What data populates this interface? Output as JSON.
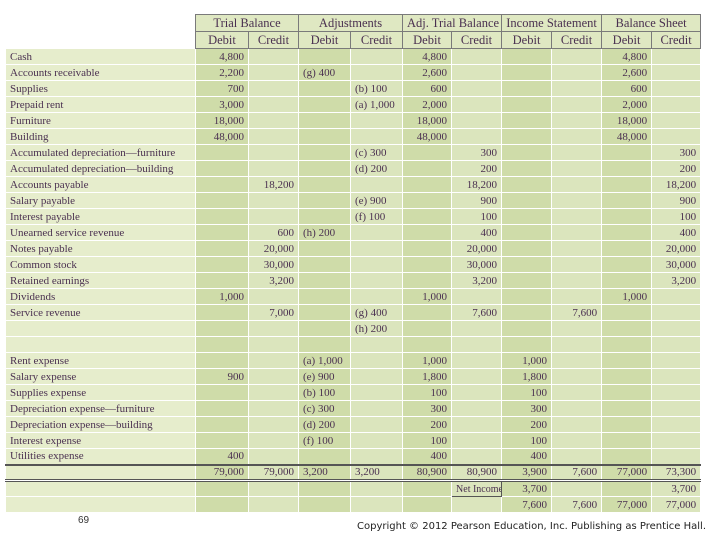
{
  "table": {
    "groups": [
      "Trial Balance",
      "Adjustments",
      "Adj. Trial Balance",
      "Income Statement",
      "Balance Sheet"
    ],
    "subheaders": [
      "Debit",
      "Credit",
      "Debit",
      "Credit",
      "Debit",
      "Credit",
      "Debit",
      "Credit",
      "Debit",
      "Credit"
    ],
    "rows": [
      [
        "Cash",
        "4,800",
        null,
        null,
        null,
        "4,800",
        null,
        null,
        null,
        "4,800",
        null
      ],
      [
        "Accounts receivable",
        "2,200",
        null,
        "(g)  400",
        null,
        "2,600",
        null,
        null,
        null,
        "2,600",
        null
      ],
      [
        "Supplies",
        "700",
        null,
        null,
        "(b)  100",
        "600",
        null,
        null,
        null,
        "600",
        null
      ],
      [
        "Prepaid rent",
        "3,000",
        null,
        null,
        "(a) 1,000",
        "2,000",
        null,
        null,
        null,
        "2,000",
        null
      ],
      [
        "Furniture",
        "18,000",
        null,
        null,
        null,
        "18,000",
        null,
        null,
        null,
        "18,000",
        null
      ],
      [
        "Building",
        "48,000",
        null,
        null,
        null,
        "48,000",
        null,
        null,
        null,
        "48,000",
        null
      ],
      [
        "Accumulated depreciation—furniture",
        null,
        null,
        null,
        "(c)  300",
        null,
        "300",
        null,
        null,
        null,
        "300"
      ],
      [
        "Accumulated depreciation—building",
        null,
        null,
        null,
        "(d)  200",
        null,
        "200",
        null,
        null,
        null,
        "200"
      ],
      [
        "Accounts payable",
        null,
        "18,200",
        null,
        null,
        null,
        "18,200",
        null,
        null,
        null,
        "18,200"
      ],
      [
        "Salary payable",
        null,
        null,
        null,
        "(e)  900",
        null,
        "900",
        null,
        null,
        null,
        "900"
      ],
      [
        "Interest payable",
        null,
        null,
        null,
        "(f)  100",
        null,
        "100",
        null,
        null,
        null,
        "100"
      ],
      [
        "Unearned service revenue",
        null,
        "600",
        "(h)  200",
        null,
        null,
        "400",
        null,
        null,
        null,
        "400"
      ],
      [
        "Notes payable",
        null,
        "20,000",
        null,
        null,
        null,
        "20,000",
        null,
        null,
        null,
        "20,000"
      ],
      [
        "Common stock",
        null,
        "30,000",
        null,
        null,
        null,
        "30,000",
        null,
        null,
        null,
        "30,000"
      ],
      [
        "Retained earnings",
        null,
        "3,200",
        null,
        null,
        null,
        "3,200",
        null,
        null,
        null,
        "3,200"
      ],
      [
        "Dividends",
        "1,000",
        null,
        null,
        null,
        "1,000",
        null,
        null,
        null,
        "1,000",
        null
      ],
      [
        "Service revenue",
        null,
        "7,000",
        null,
        "(g)  400",
        null,
        "7,600",
        null,
        "7,600",
        null,
        null
      ],
      [
        null,
        null,
        null,
        null,
        "(h)  200",
        null,
        null,
        null,
        null,
        null,
        null
      ],
      [
        null,
        null,
        null,
        null,
        null,
        null,
        null,
        null,
        null,
        null,
        null
      ],
      [
        "Rent expense",
        null,
        null,
        "(a) 1,000",
        null,
        "1,000",
        null,
        "1,000",
        null,
        null,
        null
      ],
      [
        "Salary expense",
        "900",
        null,
        "(e)  900",
        null,
        "1,800",
        null,
        "1,800",
        null,
        null,
        null
      ],
      [
        "Supplies expense",
        null,
        null,
        "(b)  100",
        null,
        "100",
        null,
        "100",
        null,
        null,
        null
      ],
      [
        "Depreciation expense—furniture",
        null,
        null,
        "(c)  300",
        null,
        "300",
        null,
        "300",
        null,
        null,
        null
      ],
      [
        "Depreciation expense—building",
        null,
        null,
        "(d)  200",
        null,
        "200",
        null,
        "200",
        null,
        null,
        null
      ],
      [
        "Interest expense",
        null,
        null,
        "(f)  100",
        null,
        "100",
        null,
        "100",
        null,
        null,
        null
      ],
      [
        "Utilities expense",
        "400",
        null,
        null,
        null,
        "400",
        null,
        "400",
        null,
        null,
        null
      ],
      [
        null,
        "79,000",
        "79,000",
        "3,200",
        "3,200",
        "80,900",
        "80,900",
        "3,900",
        "7,600",
        "77,000",
        "73,300"
      ],
      [
        null,
        null,
        null,
        null,
        null,
        null,
        "Net Income",
        "3,700",
        null,
        null,
        "3,700"
      ],
      [
        null,
        null,
        null,
        null,
        null,
        null,
        null,
        "7,600",
        "7,600",
        "77,000",
        "77,000"
      ]
    ]
  },
  "footer": {
    "page_number": "69",
    "copyright": "Copyright © 2012 Pearson Education, Inc. Publishing as Prentice Hall."
  }
}
